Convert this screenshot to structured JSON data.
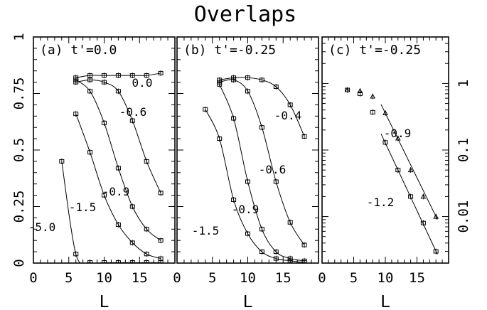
{
  "title": "Overlaps",
  "chart_data": [
    {
      "type": "line",
      "panel_label": "(a) t'=0.0",
      "xlabel": "L",
      "ylabel": "",
      "xlim": [
        0,
        20
      ],
      "ylim": [
        0,
        1
      ],
      "xticks": [
        "0",
        "5",
        "10",
        "15"
      ],
      "yticks": [
        "0",
        "0.25",
        "0.5",
        "0.75",
        "1"
      ],
      "series": [
        {
          "name": "0.0",
          "x": [
            6,
            8,
            10,
            12,
            14,
            16,
            18
          ],
          "y": [
            0.82,
            0.83,
            0.83,
            0.83,
            0.83,
            0.83,
            0.84
          ]
        },
        {
          "name": "-0.6",
          "x": [
            6,
            8,
            10,
            12,
            14,
            16,
            18
          ],
          "y": [
            0.8,
            0.81,
            0.8,
            0.76,
            0.63,
            0.45,
            0.31
          ]
        },
        {
          "name": "-0.9",
          "x": [
            6,
            8,
            10,
            12,
            14,
            16,
            18
          ],
          "y": [
            0.81,
            0.76,
            0.62,
            0.42,
            0.25,
            0.15,
            0.1
          ]
        },
        {
          "name": "-1.5",
          "x": [
            6,
            8,
            10,
            12,
            14,
            16,
            18
          ],
          "y": [
            0.66,
            0.49,
            0.3,
            0.17,
            0.09,
            0.04,
            0.02
          ]
        },
        {
          "name": "-5.0",
          "x": [
            4,
            6,
            8,
            10,
            12,
            14,
            16,
            18
          ],
          "y": [
            0.45,
            0.04,
            0.0,
            0.0,
            0.0,
            0.0,
            0.0,
            0.0
          ]
        }
      ]
    },
    {
      "type": "line",
      "panel_label": "(b) t'=-0.25",
      "xlabel": "L",
      "ylabel": "",
      "xlim": [
        0,
        20
      ],
      "ylim": [
        0,
        1
      ],
      "xticks": [
        "0",
        "5",
        "10",
        "15"
      ],
      "series": [
        {
          "name": "-0.4",
          "x": [
            6,
            8,
            10,
            12,
            14,
            16,
            18
          ],
          "y": [
            0.81,
            0.82,
            0.82,
            0.81,
            0.78,
            0.7,
            0.56
          ]
        },
        {
          "name": "-0.6",
          "x": [
            6,
            8,
            10,
            12,
            14,
            16,
            18
          ],
          "y": [
            0.8,
            0.81,
            0.76,
            0.6,
            0.36,
            0.18,
            0.08
          ]
        },
        {
          "name": "-0.9",
          "x": [
            6,
            8,
            10,
            12,
            14,
            16,
            18
          ],
          "y": [
            0.79,
            0.64,
            0.36,
            0.15,
            0.05,
            0.02,
            0.01
          ]
        },
        {
          "name": "-1.5",
          "x": [
            4,
            6,
            8,
            10,
            12,
            14,
            16,
            18
          ],
          "y": [
            0.68,
            0.55,
            0.28,
            0.13,
            0.05,
            0.02,
            0.01,
            0.0
          ]
        }
      ]
    },
    {
      "type": "line",
      "panel_label": "(c) t'=-0.25",
      "xlabel": "L",
      "ylabel": "",
      "yscale": "log",
      "xlim": [
        0,
        20
      ],
      "ylim": [
        0.002,
        5
      ],
      "xticks": [
        "0",
        "5",
        "10",
        "15"
      ],
      "yticks": [
        "1",
        "0.1",
        "0.01"
      ],
      "series": [
        {
          "name": "-0.9",
          "x": [
            4,
            6,
            8,
            10,
            12,
            14,
            16,
            18
          ],
          "y": [
            0.8,
            0.77,
            0.64,
            0.36,
            0.15,
            0.05,
            0.02,
            0.01
          ]
        },
        {
          "name": "-1.2",
          "x": [
            4,
            6,
            8,
            10,
            12,
            14,
            16,
            18
          ],
          "y": [
            0.8,
            0.7,
            0.37,
            0.13,
            0.05,
            0.02,
            0.008,
            0.003
          ]
        }
      ]
    }
  ]
}
